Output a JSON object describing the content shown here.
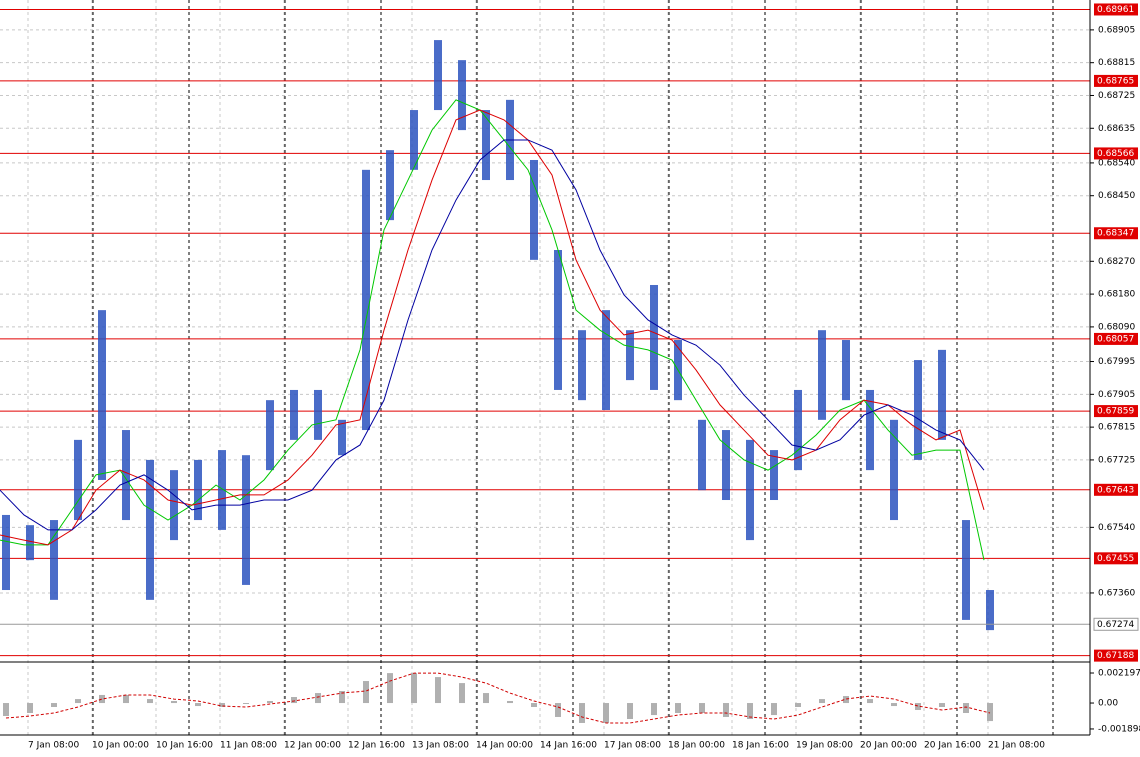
{
  "chart_data": [
    {
      "type": "hilo",
      "x": [
        0,
        6,
        12,
        18,
        24,
        30,
        36,
        42,
        48,
        54,
        60,
        66,
        72,
        78,
        84,
        90,
        96,
        102,
        108,
        114,
        120,
        126,
        132,
        138,
        144,
        150,
        156,
        162,
        168,
        174,
        180,
        186,
        192,
        198,
        204,
        210,
        216,
        222,
        228,
        234,
        240,
        246
      ],
      "highs": [
        0.67574,
        0.67546,
        0.6756,
        0.6778,
        0.68136,
        0.67807,
        0.67725,
        0.67697,
        0.67725,
        0.67752,
        0.67738,
        0.67889,
        0.67917,
        0.67917,
        0.67835,
        0.68521,
        0.68575,
        0.68685,
        0.68877,
        0.68822,
        0.68685,
        0.68713,
        0.68548,
        0.68301,
        0.68081,
        0.68136,
        0.68081,
        0.68205,
        0.68054,
        0.67835,
        0.67807,
        0.6778,
        0.67752,
        0.67917,
        0.68081,
        0.68054,
        0.67917,
        0.67835,
        0.67999,
        0.68027,
        0.6756,
        0.67368
      ],
      "lows": [
        0.67368,
        0.6745,
        0.67341,
        0.6756,
        0.6767,
        0.6756,
        0.67341,
        0.67505,
        0.6756,
        0.67533,
        0.67382,
        0.67697,
        0.6778,
        0.6778,
        0.67738,
        0.67807,
        0.68383,
        0.68521,
        0.68685,
        0.6863,
        0.68493,
        0.68493,
        0.68274,
        0.67917,
        0.67889,
        0.67862,
        0.67944,
        0.67917,
        0.67889,
        0.67642,
        0.67615,
        0.67505,
        0.67615,
        0.67697,
        0.67835,
        0.67889,
        0.67697,
        0.6756,
        0.67725,
        0.6778,
        0.67286,
        0.67258
      ],
      "color": "#2a52be",
      "series": [
        {
          "color": "#00c800",
          "values": [
            0.67505,
            0.67492,
            0.67492,
            0.67588,
            0.67684,
            0.67697,
            0.67601,
            0.6756,
            0.67601,
            0.67656,
            0.67615,
            0.6767,
            0.67752,
            0.67821,
            0.67835,
            0.68027,
            0.68356,
            0.68493,
            0.6863,
            0.68713,
            0.68685,
            0.68603,
            0.68521,
            0.68356,
            0.68136,
            0.68081,
            0.6804,
            0.68027,
            0.67999,
            0.67889,
            0.6778,
            0.67725,
            0.67697,
            0.67738,
            0.67793,
            0.67862,
            0.67889,
            0.67807,
            0.67738,
            0.67752,
            0.67752,
            0.6745
          ]
        },
        {
          "color": "#dd0000",
          "values": [
            0.67519,
            0.67505,
            0.67492,
            0.67533,
            0.67642,
            0.67697,
            0.6767,
            0.67615,
            0.67601,
            0.67615,
            0.67629,
            0.67629,
            0.6767,
            0.67738,
            0.67821,
            0.67835,
            0.68081,
            0.68301,
            0.68493,
            0.68658,
            0.68685,
            0.68658,
            0.68603,
            0.68507,
            0.68274,
            0.68136,
            0.68068,
            0.68081,
            0.68054,
            0.67972,
            0.67876,
            0.67807,
            0.67738,
            0.67725,
            0.67752,
            0.67835,
            0.67889,
            0.67876,
            0.67821,
            0.6778,
            0.67807,
            0.67588
          ]
        },
        {
          "color": "#0000a0",
          "values": [
            0.67642,
            0.67574,
            0.67533,
            0.67533,
            0.67588,
            0.67656,
            0.67684,
            0.67642,
            0.67588,
            0.67601,
            0.67601,
            0.67615,
            0.67615,
            0.67642,
            0.67725,
            0.67766,
            0.67889,
            0.68109,
            0.68301,
            0.68438,
            0.68548,
            0.68603,
            0.68603,
            0.68575,
            0.68466,
            0.68301,
            0.68178,
            0.68109,
            0.68068,
            0.6804,
            0.67985,
            0.67903,
            0.67835,
            0.67766,
            0.67752,
            0.6778,
            0.67848,
            0.67876,
            0.67848,
            0.67807,
            0.6778,
            0.67697
          ]
        }
      ],
      "levels": [
        0.68961,
        0.68765,
        0.68566,
        0.68347,
        0.68057,
        0.67859,
        0.67643,
        0.67455,
        0.67188
      ],
      "level_color": "#e00000",
      "last_price": 0.67274,
      "xlim": [
        0,
        272.5
      ],
      "ylim": [
        0.67176,
        0.68987
      ],
      "xticks": [
        {
          "value": 7,
          "label": "7 Jan 08:00"
        },
        {
          "value": 23,
          "label": "10 Jan 00:00"
        },
        {
          "value": 39,
          "label": "10 Jan 16:00"
        },
        {
          "value": 55,
          "label": "11 Jan 08:00"
        },
        {
          "value": 71,
          "label": "12 Jan 00:00"
        },
        {
          "value": 87,
          "label": "12 Jan 16:00"
        },
        {
          "value": 103,
          "label": "13 Jan 08:00"
        },
        {
          "value": 119,
          "label": "14 Jan 00:00"
        },
        {
          "value": 135,
          "label": "14 Jan 16:00"
        },
        {
          "value": 151,
          "label": "17 Jan 08:00"
        },
        {
          "value": 167,
          "label": "18 Jan 00:00"
        },
        {
          "value": 183,
          "label": "18 Jan 16:00"
        },
        {
          "value": 199,
          "label": "19 Jan 08:00"
        },
        {
          "value": 215,
          "label": "20 Jan 00:00"
        },
        {
          "value": 231,
          "label": "20 Jan 16:00"
        },
        {
          "value": 247,
          "label": "21 Jan 08:00"
        }
      ],
      "yticks": [
        0.68905,
        0.68815,
        0.68725,
        0.68635,
        {
          "value": 0.6854,
          "label": "0.68540"
        },
        {
          "value": 0.6845,
          "label": "0.68450"
        },
        {
          "value": 0.6827,
          "label": "0.68270"
        },
        {
          "value": 0.6818,
          "label": "0.68180"
        },
        {
          "value": 0.6809,
          "label": "0.68090"
        },
        0.67995,
        0.67905,
        0.67815,
        0.67725,
        {
          "value": 0.6754,
          "label": "0.67540"
        },
        {
          "value": 0.6736,
          "label": "0.67360"
        }
      ],
      "grid": true
    },
    {
      "type": "oscillator",
      "x": [
        0,
        6,
        12,
        18,
        24,
        30,
        36,
        42,
        48,
        54,
        60,
        66,
        72,
        78,
        84,
        90,
        96,
        102,
        108,
        114,
        120,
        126,
        132,
        138,
        144,
        150,
        156,
        162,
        168,
        174,
        180,
        186,
        192,
        198,
        204,
        210,
        216,
        222,
        228,
        234,
        240,
        246
      ],
      "values": [
        -0.00095,
        -0.00073,
        -0.00029,
        0.00029,
        0.00059,
        0.00059,
        0.00029,
        0.00015,
        -0.00022,
        -0.00029,
        -7e-05,
        0.00015,
        0.00044,
        0.00073,
        0.00088,
        0.00161,
        0.00219,
        0.00219,
        0.0019,
        0.00146,
        0.00073,
        0.00015,
        -0.00029,
        -0.00102,
        -0.00146,
        -0.00146,
        -0.00117,
        -0.00088,
        -0.00073,
        -0.00073,
        -0.00102,
        -0.00117,
        -0.00088,
        -0.00029,
        0.00029,
        0.00051,
        0.00029,
        -0.00022,
        -0.00051,
        -0.00029,
        -0.00073,
        -0.00132
      ],
      "color": "#b0b0b0",
      "signal": {
        "color": "#d00000",
        "values": [
          -0.0011,
          -0.00095,
          -0.00073,
          -0.00029,
          0.00029,
          0.00059,
          0.00059,
          0.00029,
          0.00015,
          -0.00022,
          -0.00029,
          -7e-05,
          0.00015,
          0.00044,
          0.00073,
          0.00088,
          0.00161,
          0.00219,
          0.00219,
          0.0019,
          0.00146,
          0.00073,
          0.00015,
          -0.00029,
          -0.00102,
          -0.00146,
          -0.00146,
          -0.00117,
          -0.00088,
          -0.00073,
          -0.00073,
          -0.00102,
          -0.00117,
          -0.00088,
          -0.00029,
          0.00029,
          0.00051,
          0.00029,
          -0.00022,
          -0.00051,
          -0.00029,
          -0.00073
        ]
      },
      "ylim": [
        -0.00234,
        0.00293
      ],
      "yticks": [
        0.002197,
        {
          "value": 0,
          "label": "0.00"
        },
        -0.001898
      ]
    }
  ]
}
